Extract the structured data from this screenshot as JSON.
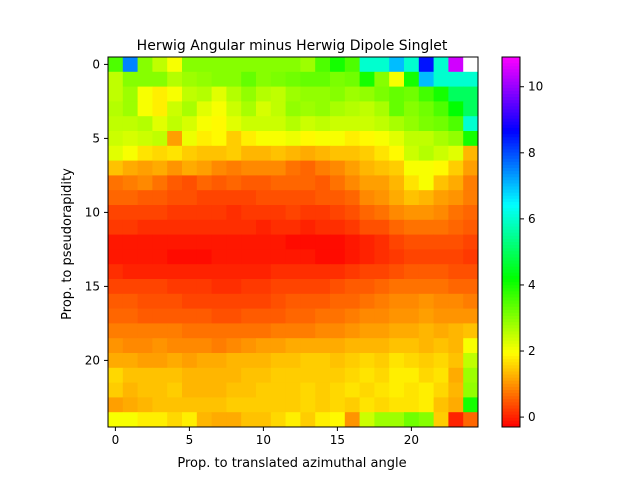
{
  "chart_data": {
    "type": "heatmap",
    "title": "Herwig Angular minus Herwig Dipole Singlet",
    "xlabel": "Prop. to translated azimuthal angle",
    "ylabel": "Prop. to pseudorapidity",
    "x_ticks": [
      0,
      5,
      10,
      15,
      20
    ],
    "y_ticks": [
      0,
      5,
      10,
      15,
      20
    ],
    "n_cols": 25,
    "n_rows": 25,
    "colormap": "gist_rainbow_r",
    "colorbar": {
      "range": [
        -0.3,
        10.9
      ],
      "ticks": [
        0,
        2,
        4,
        6,
        8,
        10
      ]
    },
    "values": [
      [
        3.5,
        7.5,
        3.0,
        2.5,
        2.0,
        3.0,
        3.0,
        3.0,
        3.0,
        3.0,
        3.0,
        3.0,
        3.0,
        2.8,
        3.5,
        4.0,
        3.5,
        6.0,
        6.0,
        7.0,
        6.0,
        8.5,
        6.0,
        10.5,
        null
      ],
      [
        2.5,
        3.0,
        3.0,
        3.0,
        2.6,
        2.8,
        2.9,
        3.0,
        3.0,
        3.3,
        3.0,
        3.1,
        3.2,
        3.3,
        3.3,
        3.1,
        3.2,
        4.0,
        3.0,
        2.0,
        4.0,
        7.0,
        6.0,
        6.0,
        6.0
      ],
      [
        2.5,
        2.8,
        2.0,
        1.8,
        2.0,
        2.5,
        2.6,
        2.2,
        2.6,
        2.9,
        2.6,
        2.5,
        2.8,
        2.9,
        2.9,
        3.0,
        2.8,
        2.9,
        3.1,
        3.3,
        3.2,
        3.6,
        4.0,
        5.0,
        5.0
      ],
      [
        2.6,
        2.8,
        2.0,
        1.8,
        2.4,
        2.7,
        2.2,
        2.0,
        2.4,
        2.7,
        2.3,
        2.5,
        2.9,
        2.8,
        2.9,
        2.7,
        2.6,
        2.5,
        2.7,
        3.3,
        3.0,
        3.2,
        3.5,
        4.2,
        5.0
      ],
      [
        2.5,
        2.5,
        2.6,
        2.2,
        2.5,
        2.3,
        2.0,
        1.9,
        2.2,
        2.4,
        2.4,
        2.4,
        2.6,
        2.4,
        2.5,
        2.4,
        2.4,
        2.4,
        2.5,
        2.7,
        2.9,
        3.1,
        3.2,
        3.5,
        6.0
      ],
      [
        2.4,
        2.3,
        2.4,
        2.5,
        1.1,
        2.1,
        1.8,
        1.9,
        1.5,
        1.8,
        2.0,
        2.0,
        2.1,
        1.9,
        2.0,
        2.0,
        1.8,
        1.9,
        2.0,
        2.2,
        2.5,
        2.5,
        2.7,
        2.9,
        4.0
      ],
      [
        2.2,
        2.0,
        1.7,
        1.6,
        1.7,
        1.5,
        1.4,
        1.4,
        1.5,
        1.3,
        1.3,
        1.4,
        1.3,
        1.2,
        1.3,
        1.4,
        1.4,
        1.5,
        1.7,
        1.9,
        2.4,
        2.6,
        2.4,
        2.2,
        1.3
      ],
      [
        1.4,
        1.2,
        1.1,
        1.2,
        1.0,
        1.2,
        1.1,
        0.9,
        0.8,
        0.9,
        0.9,
        0.9,
        0.7,
        0.6,
        0.8,
        0.9,
        1.1,
        1.3,
        1.4,
        1.5,
        2.0,
        2.0,
        1.9,
        1.5,
        1.1
      ],
      [
        0.7,
        0.8,
        0.9,
        0.7,
        0.5,
        0.4,
        0.6,
        0.5,
        0.6,
        0.5,
        0.5,
        0.6,
        0.6,
        0.6,
        0.5,
        0.7,
        0.9,
        1.1,
        1.1,
        1.3,
        1.7,
        2.0,
        1.4,
        1.2,
        0.8
      ],
      [
        0.6,
        0.6,
        0.5,
        0.5,
        0.4,
        0.4,
        0.3,
        0.3,
        0.3,
        0.3,
        0.4,
        0.4,
        0.4,
        0.4,
        0.5,
        0.5,
        0.6,
        0.9,
        1.0,
        1.2,
        1.4,
        1.3,
        1.1,
        1.0,
        0.8
      ],
      [
        0.3,
        0.3,
        0.3,
        0.3,
        0.2,
        0.2,
        0.2,
        0.2,
        0.1,
        0.2,
        0.2,
        0.2,
        0.3,
        0.2,
        0.2,
        0.3,
        0.4,
        0.6,
        0.7,
        0.9,
        1.0,
        1.0,
        0.9,
        0.7,
        0.6
      ],
      [
        0.2,
        0.2,
        0.1,
        0.1,
        0.1,
        0.1,
        0.1,
        0.1,
        0.1,
        0.1,
        0.0,
        0.1,
        0.1,
        0.0,
        0.1,
        0.1,
        0.2,
        0.4,
        0.4,
        0.6,
        0.7,
        0.7,
        0.7,
        0.6,
        0.5
      ],
      [
        -0.1,
        -0.1,
        -0.1,
        -0.1,
        -0.1,
        -0.1,
        -0.1,
        -0.1,
        -0.1,
        -0.1,
        -0.1,
        -0.1,
        -0.2,
        -0.2,
        -0.2,
        -0.2,
        -0.1,
        0.0,
        0.1,
        0.3,
        0.4,
        0.4,
        0.4,
        0.4,
        0.3
      ],
      [
        -0.1,
        -0.1,
        -0.1,
        -0.1,
        -0.2,
        -0.2,
        -0.2,
        -0.1,
        -0.1,
        -0.1,
        -0.1,
        -0.1,
        -0.1,
        -0.1,
        -0.2,
        -0.2,
        -0.1,
        0.0,
        0.1,
        0.2,
        0.3,
        0.3,
        0.3,
        0.3,
        0.2
      ],
      [
        0.1,
        0.0,
        0.0,
        0.0,
        0.0,
        0.0,
        0.0,
        0.0,
        0.0,
        0.0,
        0.0,
        0.1,
        0.1,
        0.1,
        0.1,
        0.1,
        0.2,
        0.3,
        0.3,
        0.4,
        0.5,
        0.5,
        0.5,
        0.4,
        0.4
      ],
      [
        0.3,
        0.3,
        0.3,
        0.3,
        0.2,
        0.2,
        0.2,
        0.1,
        0.1,
        0.2,
        0.2,
        0.3,
        0.3,
        0.3,
        0.3,
        0.4,
        0.5,
        0.5,
        0.6,
        0.7,
        0.7,
        0.7,
        0.7,
        0.6,
        0.6
      ],
      [
        0.5,
        0.5,
        0.4,
        0.4,
        0.4,
        0.3,
        0.3,
        0.3,
        0.3,
        0.3,
        0.3,
        0.4,
        0.5,
        0.5,
        0.5,
        0.6,
        0.6,
        0.7,
        0.8,
        0.9,
        0.9,
        1.0,
        0.9,
        0.9,
        0.8
      ],
      [
        0.6,
        0.6,
        0.5,
        0.5,
        0.5,
        0.5,
        0.5,
        0.4,
        0.4,
        0.5,
        0.5,
        0.5,
        0.6,
        0.6,
        0.7,
        0.7,
        0.8,
        0.9,
        0.9,
        1.0,
        1.0,
        1.1,
        1.0,
        1.0,
        1.0
      ],
      [
        0.8,
        0.8,
        0.8,
        0.8,
        0.8,
        0.7,
        0.7,
        0.7,
        0.7,
        0.7,
        0.7,
        0.8,
        0.8,
        0.8,
        0.9,
        0.9,
        1.0,
        1.1,
        1.1,
        1.2,
        1.2,
        1.3,
        1.2,
        1.3,
        1.4
      ],
      [
        1.0,
        0.9,
        0.9,
        1.0,
        0.9,
        0.9,
        0.9,
        0.8,
        0.9,
        1.0,
        1.1,
        1.1,
        1.2,
        1.2,
        1.2,
        1.2,
        1.3,
        1.3,
        1.3,
        1.4,
        1.4,
        1.3,
        1.4,
        1.3,
        2.0
      ],
      [
        1.2,
        1.2,
        1.1,
        1.1,
        1.2,
        1.1,
        1.2,
        1.2,
        1.3,
        1.3,
        1.3,
        1.4,
        1.4,
        1.5,
        1.5,
        1.4,
        1.5,
        1.6,
        1.5,
        1.7,
        1.6,
        1.5,
        1.6,
        1.4,
        2.5
      ],
      [
        1.6,
        1.4,
        1.4,
        1.4,
        1.4,
        1.3,
        1.3,
        1.3,
        1.3,
        1.4,
        1.4,
        1.5,
        1.5,
        1.5,
        1.5,
        1.5,
        1.6,
        1.7,
        1.6,
        1.8,
        1.8,
        1.6,
        1.7,
        1.2,
        2.8
      ],
      [
        1.5,
        1.3,
        1.4,
        1.4,
        1.5,
        1.3,
        1.3,
        1.3,
        1.4,
        1.4,
        1.5,
        1.5,
        1.5,
        1.6,
        1.5,
        1.6,
        1.7,
        1.6,
        1.7,
        1.8,
        1.7,
        1.8,
        1.6,
        1.3,
        2.9
      ],
      [
        1.1,
        1.2,
        1.3,
        1.4,
        1.4,
        1.4,
        1.4,
        1.4,
        1.5,
        1.5,
        1.5,
        1.5,
        1.5,
        1.6,
        1.5,
        1.6,
        1.5,
        1.7,
        1.6,
        1.7,
        1.7,
        1.8,
        1.4,
        1.2,
        4.0
      ],
      [
        2.0,
        2.0,
        1.8,
        1.8,
        1.6,
        1.8,
        1.3,
        1.2,
        1.2,
        1.4,
        1.4,
        1.6,
        1.8,
        1.5,
        1.8,
        1.9,
        1.0,
        2.4,
        2.8,
        2.8,
        3.2,
        3.0,
        1.5,
        0.0,
        0.6
      ]
    ]
  }
}
